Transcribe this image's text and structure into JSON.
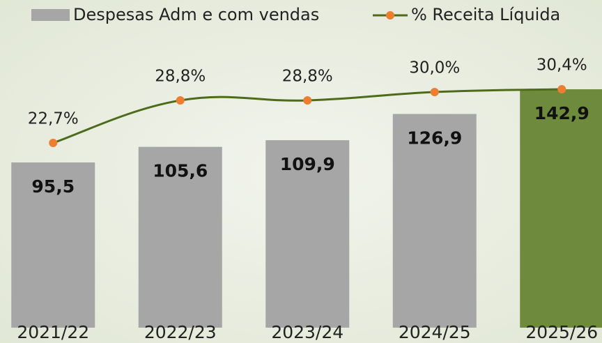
{
  "chart_data": {
    "type": "bar_line",
    "categories": [
      "2021/22",
      "2022/23",
      "2023/24",
      "2024/25",
      "2025/26"
    ],
    "series": [
      {
        "name": "Despesas Adm e com vendas",
        "type": "bar",
        "color": "#a6a6a6",
        "colors": [
          "#a6a6a6",
          "#a6a6a6",
          "#a6a6a6",
          "#a6a6a6",
          "#6e8b3d"
        ],
        "values": [
          95.5,
          105.6,
          109.9,
          126.9,
          142.9
        ],
        "value_labels": [
          "95,5",
          "105,6",
          "109,9",
          "126,9",
          "142,9"
        ]
      },
      {
        "name": "% Receita Líquida",
        "type": "line",
        "axis": "y2",
        "color": "#4e6b1a",
        "marker_color": "#ed7d31",
        "values": [
          22.7,
          28.8,
          28.8,
          30.0,
          30.4
        ],
        "value_labels": [
          "22,7%",
          "28,8%",
          "28,8%",
          "30,0%",
          "30,4%"
        ]
      }
    ],
    "ylim": [
      -11.5,
      200.7
    ],
    "y2lim": [
      -3.8,
      43.2
    ],
    "legend": "top"
  }
}
